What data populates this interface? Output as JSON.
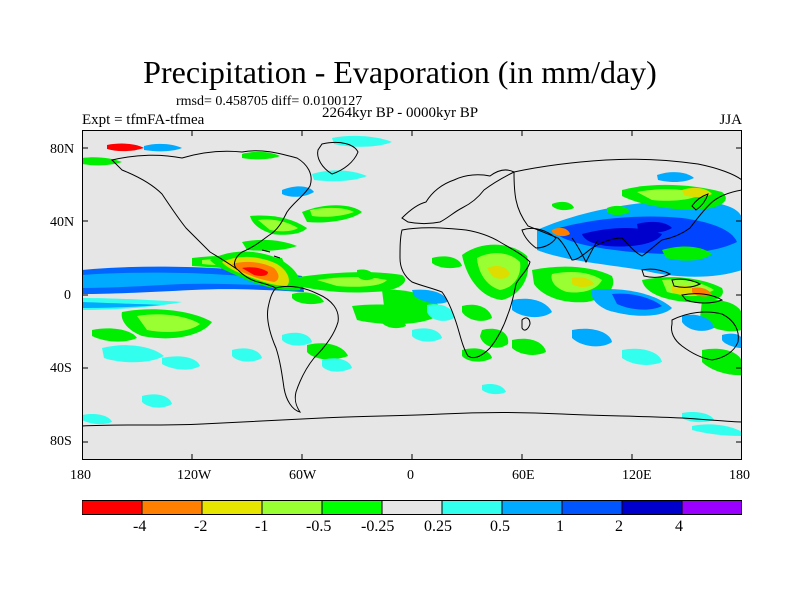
{
  "title": "Precipitation - Evaporation (in mm/day)",
  "stats": "rmsd= 0.458705 diff= 0.0100127",
  "period": "2264kyr BP - 0000kyr BP",
  "experiment": "Expt = tfmFA-tfmea",
  "season": "JJA",
  "y_ticks": [
    "80N",
    "40N",
    "0",
    "40S",
    "80S"
  ],
  "x_ticks": [
    "180",
    "120W",
    "60W",
    "0",
    "60E",
    "120E",
    "180"
  ],
  "colorbar": {
    "colors": [
      "#ff0000",
      "#ff8000",
      "#e6e600",
      "#99ff33",
      "#00ff00",
      "#e6e6e6",
      "#33ffee",
      "#00aaff",
      "#0055ff",
      "#0000cc",
      "#9900ff"
    ],
    "labels": [
      "-4",
      "-2",
      "-1",
      "-0.5",
      "-0.25",
      "0.25",
      "0.5",
      "1",
      "2",
      "4"
    ]
  },
  "colors": {
    "land_bg": "#e6e6e6",
    "green": "#00ee00",
    "lightgreen": "#99ff33",
    "yellow": "#dddd00",
    "orange": "#ff8000",
    "red": "#ff0000",
    "cyan": "#33ffee",
    "lightblue": "#00aaff",
    "blue": "#0044ff",
    "darkblue": "#0000cc"
  }
}
